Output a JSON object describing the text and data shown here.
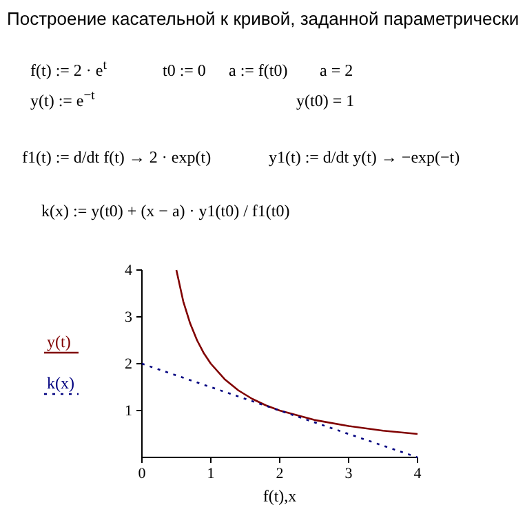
{
  "chart_data": {
    "type": "line",
    "title": "Построение касательной к кривой, заданной параметрически",
    "annotations": [
      "f(t) := 2 · e$^{t}$",
      "t0 := 0",
      "a := f(t0)",
      "a = 2",
      "y(t) := e$^{−t}$",
      "y(t0) = 1",
      "f1(t) := d/dt f(t) → 2 · exp(t)",
      "y1(t) := d/dt y(t) → −exp(−t)",
      "k(x) := y(t0) + (x − a) · y1(t0) / f1(t0)"
    ],
    "xlabel": "f(t),x",
    "series": [
      {
        "name": "y(t)",
        "color": "#800000",
        "line_style": "solid",
        "x": [
          0.5,
          0.6,
          0.7,
          0.8,
          0.9,
          1,
          1.2,
          1.4,
          1.6,
          1.8,
          2,
          2.5,
          3,
          3.5,
          4
        ],
        "values": [
          4,
          3.33,
          2.86,
          2.5,
          2.22,
          2,
          1.67,
          1.43,
          1.25,
          1.11,
          1,
          0.8,
          0.67,
          0.57,
          0.5
        ]
      },
      {
        "name": "k(x)",
        "color": "#000080",
        "line_style": "dotted",
        "x": [
          0,
          4
        ],
        "values": [
          2,
          0
        ]
      }
    ],
    "xlim": [
      0,
      4
    ],
    "ylim": [
      0,
      4
    ],
    "xticks": [
      0,
      1,
      2,
      3,
      4
    ],
    "yticks": [
      1,
      2,
      3,
      4
    ],
    "legend": "left",
    "grid": false
  }
}
